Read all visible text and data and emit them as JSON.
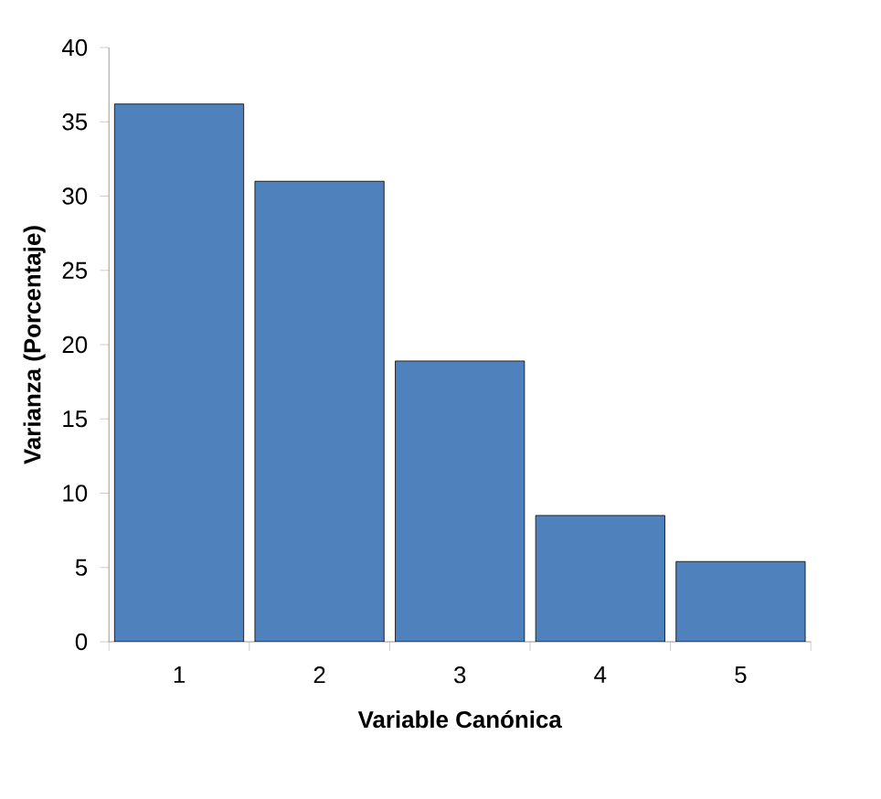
{
  "chart_data": {
    "type": "bar",
    "xlabel": "Variable Canónica",
    "ylabel": "Varianza (Porcentaje)",
    "categories": [
      "1",
      "2",
      "3",
      "4",
      "5"
    ],
    "values": [
      36.2,
      31.0,
      18.9,
      8.5,
      5.4
    ],
    "color": "#4f81bd",
    "ylim": [
      0,
      40
    ],
    "yticks": [
      0,
      5,
      10,
      15,
      20,
      25,
      30,
      35,
      40
    ],
    "grid": false
  }
}
